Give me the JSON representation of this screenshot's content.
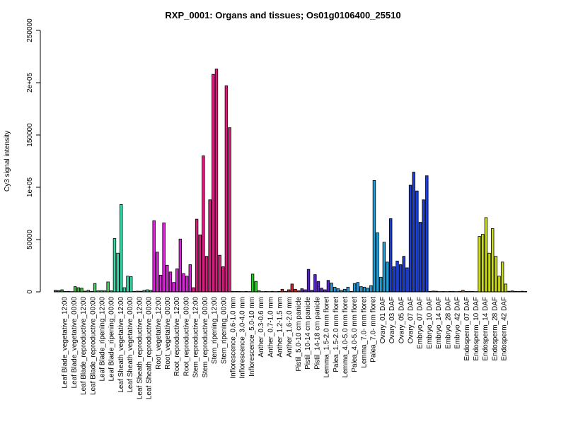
{
  "chart_data": {
    "type": "bar",
    "title": "RXP_0001: Organs and tissues; Os01g0106400_25510",
    "xlabel": "",
    "ylabel": "Cy3 signal intensity",
    "ylim": [
      0,
      250000
    ],
    "yticks": [
      0,
      50000,
      100000,
      150000,
      200000,
      250000
    ],
    "ytick_labels": [
      "0",
      "50000",
      "1e+05",
      "150000",
      "2e+05",
      "250000"
    ],
    "grid": false,
    "legend": "none",
    "categories": [
      "Leaf Blade_vegetative_12:00",
      "Leaf Blade_vegetative_00:00",
      "Leaf Blade_reproductive_12:00",
      "Leaf Blade_reproductive_00:00",
      "Leaf Blade_ripening_12:00",
      "Leaf Blade_ripening_00:00",
      "Leaf Sheath_vegetative_12:00",
      "Leaf Sheath_vegetative_00:00",
      "Leaf Sheath_reproductive_12:00",
      "Leaf Sheath_reproductive_00:00",
      "Root_vegetative_12:00",
      "Root_vegetative_00:00",
      "Root_reproductive_12:00",
      "Root_reproductive_00:00",
      "Stem_reproductive_12:00",
      "Stem_reproductive_00:00",
      "Stem_ripening_12:00",
      "Stem_ripening_00:00",
      "Inflorescence_0.6-1.0 mm",
      "Inflorescence_3.0-4.0 mm",
      "Inflorescence_5.0-10 mm",
      "Anther_0.3-0.6 mm",
      "Anther_0.7-1.0 mm",
      "Anther_1.2-1.5 mm",
      "Anther_1.6-2.0 mm",
      "Pistil_5.0-10 cm panicle",
      "Pistil_10-14 cm panicle",
      "Pistil_14-18 cm panicle",
      "Lemma_1.5-2.0 mm floret",
      "Palea_1.5-2.0 mm floret",
      "Lemma_4.0-5.0 mm floret",
      "Palea_4.0-5.0 mm floret",
      "Lemma_7.0- mm floret",
      "Palea_7.0- mm floret",
      "Ovary_01 DAF",
      "Ovary_03 DAF",
      "Ovary_05 DAF",
      "Ovary_07 DAF",
      "Embryo_07 DAF",
      "Embryo_10 DAF",
      "Embryo_14 DAF",
      "Embryo_28 DAF",
      "Embryo_42 DAF",
      "Endosperm_07 DAF",
      "Endosperm_10 DAF",
      "Endosperm_14 DAF",
      "Endosperm_28 DAF",
      "Endosperm_42 DAF"
    ],
    "groups": [
      {
        "color": "#2e8b2e",
        "values": [
          1500,
          1200,
          2000
        ]
      },
      {
        "color": "#2e8b2e",
        "values": [
          400,
          500,
          300
        ]
      },
      {
        "color": "#3cb83c",
        "values": [
          5000,
          4000,
          3500
        ]
      },
      {
        "color": "#3cb83c",
        "values": [
          700,
          1500,
          500
        ]
      },
      {
        "color": "#3ccc5a",
        "values": [
          8000,
          1000,
          1200
        ]
      },
      {
        "color": "#3ccc5a",
        "values": [
          1000,
          9500,
          1000
        ]
      },
      {
        "color": "#33ddaa",
        "values": [
          51000,
          37000,
          83500
        ]
      },
      {
        "color": "#33ddaa",
        "values": [
          4000,
          15000,
          14500
        ]
      },
      {
        "color": "#33cc99",
        "values": [
          500,
          700,
          600
        ]
      },
      {
        "color": "#33cc99",
        "values": [
          1500,
          2000,
          1500
        ]
      },
      {
        "color": "#dd22dd",
        "values": [
          68000,
          38000,
          16000
        ]
      },
      {
        "color": "#dd22dd",
        "values": [
          66000,
          25500,
          19000
        ]
      },
      {
        "color": "#dd22dd",
        "values": [
          9000,
          22000,
          50500
        ]
      },
      {
        "color": "#dd22dd",
        "values": [
          17500,
          15000,
          26000
        ]
      },
      {
        "color": "#e01b7f",
        "values": [
          4000,
          69500,
          54500
        ]
      },
      {
        "color": "#e01b7f",
        "values": [
          130000,
          34000,
          88000
        ]
      },
      {
        "color": "#e01b7f",
        "values": [
          208000,
          213000,
          35000
        ]
      },
      {
        "color": "#e01b7f",
        "values": [
          24000,
          197000,
          157000
        ]
      },
      {
        "color": "#22bb22",
        "values": [
          500,
          400,
          400
        ]
      },
      {
        "color": "#22bb22",
        "values": [
          300,
          400,
          300
        ]
      },
      {
        "color": "#22cc22",
        "values": [
          17000,
          10000,
          1000
        ]
      },
      {
        "color": "#cc2222",
        "values": [
          300,
          400,
          300
        ]
      },
      {
        "color": "#cc2222",
        "values": [
          500,
          300,
          400
        ]
      },
      {
        "color": "#cc2222",
        "values": [
          2500,
          500,
          2000
        ]
      },
      {
        "color": "#cc2222",
        "values": [
          7500,
          2500,
          1000
        ]
      },
      {
        "color": "#5522cc",
        "values": [
          3000,
          2000,
          21500
        ]
      },
      {
        "color": "#5522cc",
        "values": [
          1500,
          16500,
          10000
        ]
      },
      {
        "color": "#5522cc",
        "values": [
          3500,
          2000,
          11000
        ]
      },
      {
        "color": "#2299dd",
        "values": [
          8500,
          4500,
          3000
        ]
      },
      {
        "color": "#2299dd",
        "values": [
          1500,
          2500,
          4500
        ]
      },
      {
        "color": "#2299dd",
        "values": [
          500,
          8000,
          9000
        ]
      },
      {
        "color": "#2299dd",
        "values": [
          5000,
          4500,
          3500
        ]
      },
      {
        "color": "#1ea0dd",
        "values": [
          6000,
          106500,
          56500
        ]
      },
      {
        "color": "#1ea0dd",
        "values": [
          14000,
          47500,
          28500
        ]
      },
      {
        "color": "#1a3fdd",
        "values": [
          70000,
          24000,
          29500
        ]
      },
      {
        "color": "#1a3fdd",
        "values": [
          26000,
          34000,
          23000
        ]
      },
      {
        "color": "#1a3fdd",
        "values": [
          102000,
          114500,
          96500
        ]
      },
      {
        "color": "#1a3fdd",
        "values": [
          66500,
          88000,
          111000
        ]
      },
      {
        "color": "#666666",
        "values": [
          500,
          800,
          600
        ]
      },
      {
        "color": "#666666",
        "values": [
          300,
          400,
          300
        ]
      },
      {
        "color": "#666666",
        "values": [
          400,
          500,
          300
        ]
      },
      {
        "color": "#cc6622",
        "values": [
          500,
          1500,
          400
        ]
      },
      {
        "color": "#666666",
        "values": [
          500,
          400,
          300
        ]
      },
      {
        "color": "#ccdd11",
        "values": [
          53000,
          55000,
          71000
        ]
      },
      {
        "color": "#ccdd11",
        "values": [
          37000,
          60500,
          34000
        ]
      },
      {
        "color": "#ccdd11",
        "values": [
          15000,
          28500,
          7500
        ]
      },
      {
        "color": "#666666",
        "values": [
          600,
          900,
          500
        ]
      },
      {
        "color": "#666666",
        "values": [
          400,
          600,
          400
        ]
      }
    ]
  }
}
